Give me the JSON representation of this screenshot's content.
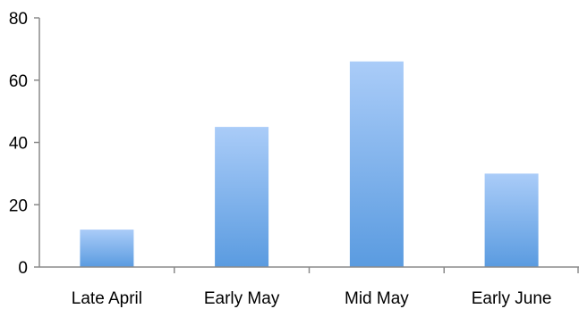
{
  "chart_data": {
    "type": "bar",
    "title": "",
    "xlabel": "",
    "ylabel": "",
    "categories": [
      "Late April",
      "Early May",
      "Mid May",
      "Early June"
    ],
    "values": [
      12,
      45,
      66,
      30
    ],
    "ylim": [
      0,
      80
    ],
    "yticks": [
      0,
      20,
      40,
      60,
      80
    ],
    "ytick_labels": [
      "0",
      "20",
      "40",
      "60",
      "80"
    ],
    "grid": false,
    "legend": "none",
    "bar_color_top": "#aaccf8",
    "bar_color_bottom": "#5a9be0",
    "axis_color": "#8a8a8a"
  }
}
